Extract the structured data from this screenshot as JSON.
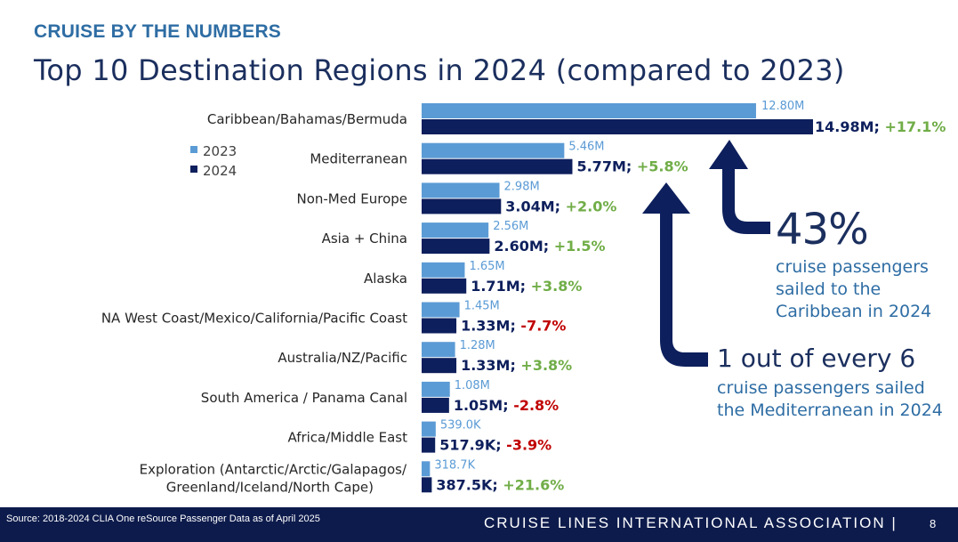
{
  "header": {
    "kicker": "CRUISE BY THE NUMBERS",
    "title": "Top 10 Destination Regions in 2024 (compared to 2023)"
  },
  "chart_data": {
    "type": "bar",
    "orientation": "horizontal",
    "categories": [
      "Caribbean/Bahamas/Bermuda",
      "Mediterranean",
      "Non-Med Europe",
      "Asia + China",
      "Alaska",
      "NA West Coast/Mexico/California/Pacific Coast",
      "Australia/NZ/Pacific",
      "South America / Panama Canal",
      "Africa/Middle East",
      "Exploration (Antarctic/Arctic/Galapagos/ Greenland/Iceland/North Cape)"
    ],
    "series": [
      {
        "name": "2023",
        "color": "#5B9BD5",
        "values": [
          12.8,
          5.46,
          2.98,
          2.56,
          1.65,
          1.45,
          1.28,
          1.08,
          0.539,
          0.3187
        ],
        "labels": [
          "12.80M",
          "5.46M",
          "2.98M",
          "2.56M",
          "1.65M",
          "1.45M",
          "1.28M",
          "1.08M",
          "539.0K",
          "318.7K"
        ]
      },
      {
        "name": "2024",
        "color": "#0D1F5C",
        "values": [
          14.98,
          5.77,
          3.04,
          2.6,
          1.71,
          1.33,
          1.33,
          1.05,
          0.5179,
          0.3875
        ],
        "labels": [
          "14.98M;",
          "5.77M;",
          "3.04M;",
          "2.60M;",
          "1.71M;",
          "1.33M;",
          "1.33M;",
          "1.05M;",
          "517.9K;",
          "387.5K;"
        ],
        "changes": [
          "+17.1%",
          "+5.8%",
          "+2.0%",
          "+1.5%",
          "+3.8%",
          "-7.7%",
          "+3.8%",
          "-2.8%",
          "-3.9%",
          "+21.6%"
        ]
      }
    ],
    "units": "passengers (M)",
    "legend": "upper-left",
    "grid": false,
    "positive_color": "#70AD47",
    "negative_color": "#C00000"
  },
  "callouts": {
    "caribbean_pct": "43%",
    "caribbean_text": [
      "cruise passengers",
      "sailed to the",
      "Caribbean in 2024"
    ],
    "med_headline": "1 out of every 6",
    "med_text": [
      "cruise passengers sailed",
      "the Mediterranean in 2024"
    ]
  },
  "footer": {
    "source": "Source: 2018-2024 CLIA One reSource Passenger Data as of April 2025",
    "org": "CRUISE LINES INTERNATIONAL ASSOCIATION |",
    "page": "8"
  }
}
